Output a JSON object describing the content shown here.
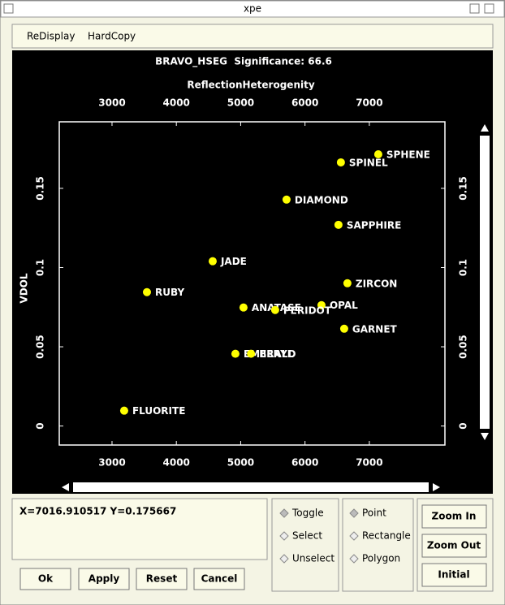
{
  "window": {
    "title": "xpe"
  },
  "menu": [
    "ReDisplay",
    "HardCopy"
  ],
  "chart_data": {
    "type": "scatter",
    "title": "BRAVO_HSEG  Significance: 66.6",
    "x_label": "ReflectionHeterogenity",
    "y_label": "VDOL",
    "labels": [
      "SPHENE",
      "SPINEL",
      "DIAMOND",
      "SAPPHIRE",
      "JADE",
      "ZIRCON",
      "RUBY",
      "OPAL",
      "ANATASE",
      "PERIDOT",
      "GARNET",
      "EMERALD",
      "BERYL",
      "FLUORITE"
    ],
    "x": [
      7139,
      6558,
      5713,
      6520,
      4565,
      6659,
      3543,
      6256,
      5044,
      5536,
      6609,
      4918,
      5161,
      3189
    ],
    "values": [
      0.1715,
      0.1664,
      0.1429,
      0.127,
      0.104,
      0.0901,
      0.0845,
      0.0763,
      0.0748,
      0.0732,
      0.0614,
      0.0456,
      0.0456,
      0.0097
    ],
    "color": "#ffff00",
    "xlim": [
      2180,
      8175
    ],
    "xticks": [
      3000,
      4000,
      5000,
      6000,
      7000
    ],
    "ylim": [
      -0.012,
      0.192
    ],
    "yticks": [
      0,
      0.05,
      0.1,
      0.15
    ]
  },
  "status": "X=7016.910517 Y=0.175667",
  "buttons": [
    "Ok",
    "Apply",
    "Reset",
    "Cancel"
  ],
  "selection_modes": [
    "Toggle",
    "Select",
    "Unselect"
  ],
  "shape_modes": [
    "Point",
    "Rectangle",
    "Polygon"
  ],
  "zoom_buttons": [
    "Zoom In",
    "Zoom Out",
    "Initial"
  ]
}
